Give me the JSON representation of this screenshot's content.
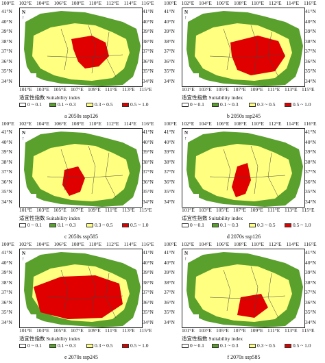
{
  "axes": {
    "top_lon": [
      "100°E",
      "102°E",
      "104°E",
      "106°E",
      "108°E",
      "110°E",
      "112°E",
      "114°E",
      "116°E"
    ],
    "bottom_lon": [
      "101°E",
      "103°E",
      "105°E",
      "107°E",
      "109°E",
      "111°E",
      "113°E",
      "115°E"
    ],
    "left_lat": [
      "41°N",
      "40°N",
      "39°N",
      "38°N",
      "37°N",
      "36°N",
      "35°N",
      "34°N"
    ],
    "right_lat": [
      "41°N",
      "40°N",
      "39°N",
      "38°N",
      "37°N",
      "36°N",
      "35°N",
      "34°N"
    ]
  },
  "north_label": "N",
  "legend": {
    "title": "适宜性指数 Suitability index",
    "items": [
      {
        "label": "0 ~ 0.1",
        "color": "#ffffff"
      },
      {
        "label": "0.1 ~ 0.3",
        "color": "#5aa02c"
      },
      {
        "label": "0.3 ~ 0.5",
        "color": "#ffff80"
      },
      {
        "label": "0.5 ~ 1.0",
        "color": "#e00000"
      }
    ]
  },
  "panels": [
    {
      "caption": "a 2050s ssp126"
    },
    {
      "caption": "b 2050s ssp245"
    },
    {
      "caption": "c 2050s ssp585"
    },
    {
      "caption": "d 2070s ssp126"
    },
    {
      "caption": "e 2070s ssp245"
    },
    {
      "caption": "f 2070s ssp585"
    }
  ]
}
